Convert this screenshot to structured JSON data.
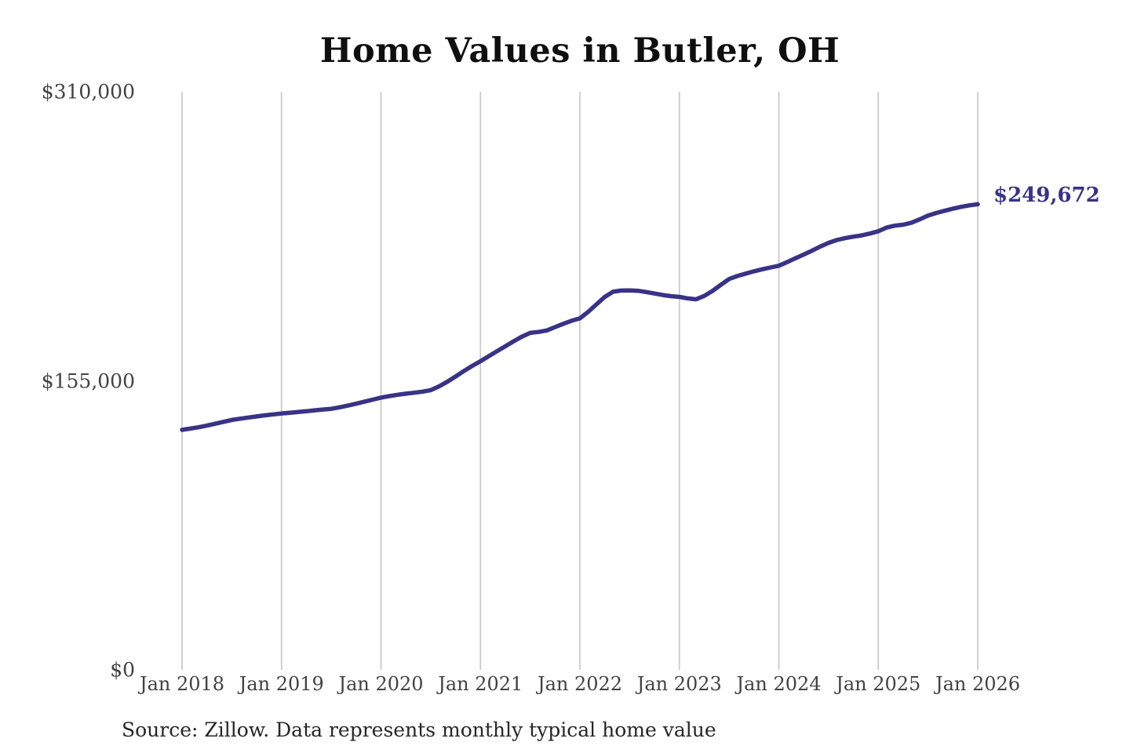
{
  "header": {
    "title": "Home Values in Butler, OH"
  },
  "annotation": {
    "final_value_label": "$249,672"
  },
  "footer": {
    "source_note": "Source: Zillow. Data represents monthly typical home value"
  },
  "colors": {
    "background": "#ffffff",
    "line": "#383386",
    "annotation": "#383386",
    "grid": "#cbcbcb",
    "title": "#0f0f0f",
    "axis": "#424242",
    "source": "#262626"
  },
  "chart_data": {
    "type": "line",
    "title": "Home Values in Butler, OH",
    "series_name": "Monthly typical home value",
    "frequency": "monthly",
    "x_start": "Jan 2018",
    "x_end": "Jan 2026",
    "x_tick_labels": [
      "Jan 2018",
      "Jan 2019",
      "Jan 2020",
      "Jan 2021",
      "Jan 2022",
      "Jan 2023",
      "Jan 2024",
      "Jan 2025",
      "Jan 2026"
    ],
    "y_ticks": [
      {
        "label": "$310,000",
        "value": 310000
      },
      {
        "label": "$155,000",
        "value": 155000
      },
      {
        "label": "$0",
        "value": 0
      }
    ],
    "ylim": [
      0,
      310000
    ],
    "grid": "vertical-only",
    "legend": "none",
    "final_value": 249672,
    "values": [
      128700,
      129400,
      130100,
      131000,
      132000,
      133000,
      134000,
      134700,
      135300,
      135900,
      136500,
      137000,
      137500,
      137900,
      138300,
      138700,
      139200,
      139600,
      140000,
      140800,
      141700,
      142700,
      143800,
      144900,
      146000,
      146800,
      147500,
      148100,
      148600,
      149200,
      150000,
      152000,
      154500,
      157300,
      160200,
      163000,
      165500,
      168200,
      170900,
      173500,
      176200,
      178700,
      180700,
      181200,
      182000,
      183800,
      185600,
      187200,
      188500,
      192000,
      196000,
      200000,
      202800,
      203400,
      203500,
      203300,
      202600,
      201800,
      201000,
      200400,
      200000,
      199200,
      198700,
      200500,
      203200,
      206500,
      209600,
      211200,
      212500,
      213700,
      214800,
      215800,
      216700,
      218700,
      220700,
      222700,
      224800,
      227000,
      229000,
      230500,
      231500,
      232300,
      233000,
      234000,
      235200,
      237200,
      238200,
      238700,
      239800,
      241600,
      243600,
      245000,
      246200,
      247300,
      248300,
      249100,
      249672
    ]
  }
}
